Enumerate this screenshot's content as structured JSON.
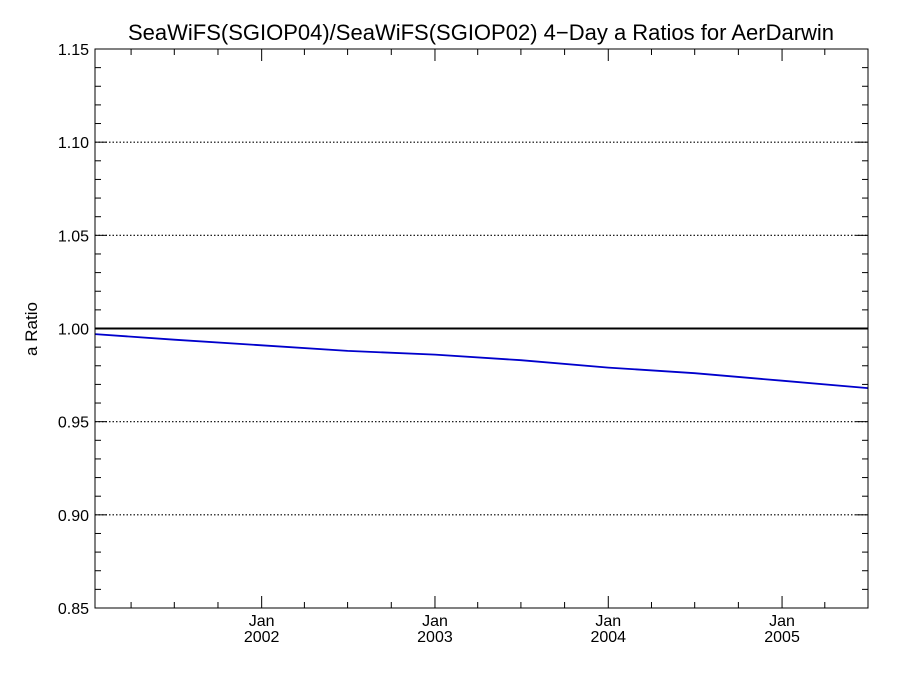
{
  "chart_data": {
    "type": "line",
    "title": "SeaWiFS(SGIOP04)/SeaWiFS(SGIOP02) 4−Day a Ratios for AerDarwin",
    "xlabel": "",
    "ylabel": "a Ratio",
    "xlim": [
      "2001-01-15",
      "2005-07-01"
    ],
    "ylim": [
      0.85,
      1.15
    ],
    "yticks": [
      0.85,
      0.9,
      0.95,
      1.0,
      1.05,
      1.1,
      1.15
    ],
    "ytick_labels": [
      "0.85",
      "0.90",
      "0.95",
      "1.00",
      "1.05",
      "1.10",
      "1.15"
    ],
    "xticks": [
      {
        "date": "2002-01-01",
        "month": "Jan",
        "year": "2002"
      },
      {
        "date": "2003-01-01",
        "month": "Jan",
        "year": "2003"
      },
      {
        "date": "2004-01-01",
        "month": "Jan",
        "year": "2004"
      },
      {
        "date": "2005-01-01",
        "month": "Jan",
        "year": "2005"
      }
    ],
    "grid": "horizontal dotted",
    "reference_line": {
      "y": 1.0,
      "color": "#000000"
    },
    "series": [
      {
        "color": "#0000cc",
        "x": [
          "2001-01-15",
          "2001-07-01",
          "2002-01-01",
          "2002-07-01",
          "2003-01-01",
          "2003-07-01",
          "2004-01-01",
          "2004-07-01",
          "2005-01-01",
          "2005-07-01"
        ],
        "y": [
          0.997,
          0.994,
          0.991,
          0.988,
          0.986,
          0.983,
          0.979,
          0.976,
          0.972,
          0.968
        ]
      }
    ]
  }
}
